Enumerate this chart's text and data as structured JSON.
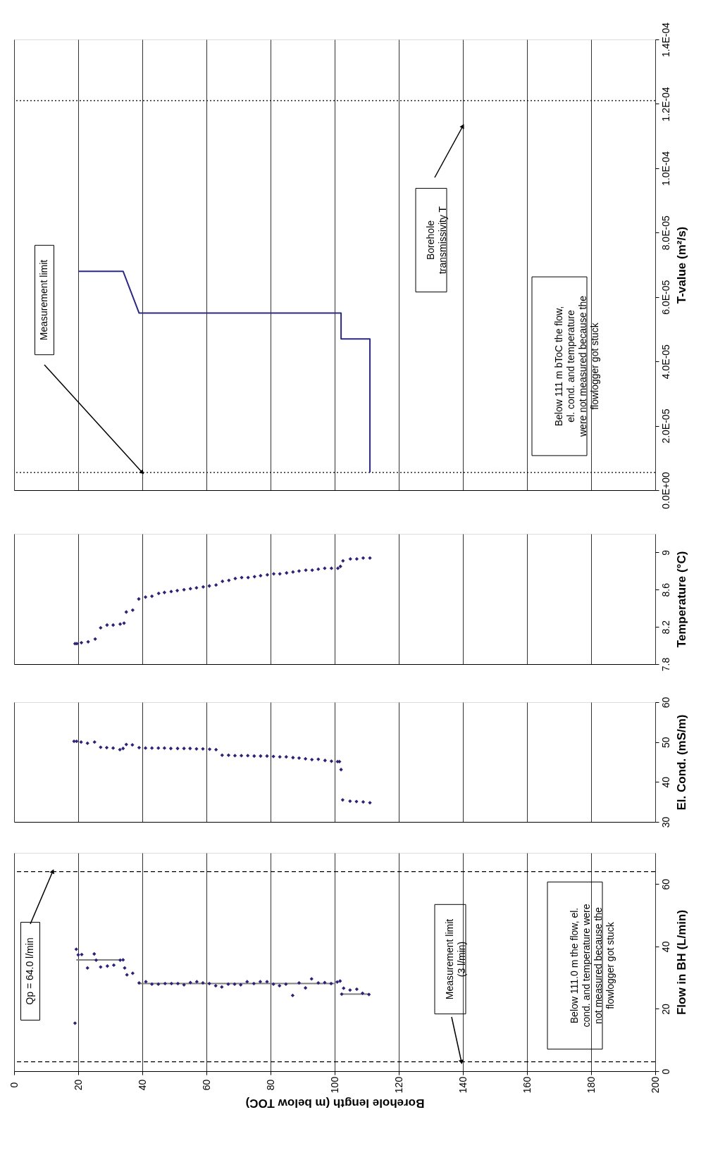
{
  "chart_data": [
    {
      "type": "line",
      "ylabel": "T-value (m²/s)",
      "xlim": [
        0,
        200
      ],
      "xticks": [
        0,
        20,
        40,
        60,
        80,
        100,
        120,
        140,
        160,
        180,
        200
      ],
      "ylim": [
        0,
        0.00014
      ],
      "yticks": [
        {
          "value": 0,
          "label": "0.0E+00"
        },
        {
          "value": 2e-05,
          "label": "2.0E-05"
        },
        {
          "value": 4e-05,
          "label": "4.0E-05"
        },
        {
          "value": 6e-05,
          "label": "6.0E-05"
        },
        {
          "value": 8e-05,
          "label": "8.0E-05"
        },
        {
          "value": 0.0001,
          "label": "1.0E-04"
        },
        {
          "value": 0.00012,
          "label": "1.2E-04"
        },
        {
          "value": 0.00014,
          "label": "1.4E-04"
        }
      ],
      "grid": "x",
      "tick_labels": "y",
      "legend": false,
      "series": [
        {
          "color": "#2b2a80",
          "x": [
            20,
            34,
            39,
            102,
            102,
            111,
            111
          ],
          "values": [
            6.8e-05,
            6.8e-05,
            5.5e-05,
            5.5e-05,
            4.7e-05,
            4.7e-05,
            5.5e-06
          ]
        }
      ],
      "ref_lines": [
        {
          "axis": "y",
          "value": 5.5e-06,
          "color": "#000000",
          "line_style": "dotted"
        },
        {
          "axis": "y",
          "value": 0.000121,
          "color": "#000000",
          "line_style": "dotted"
        }
      ],
      "annotations": [
        "Measurement limit",
        "Borehole\ntransmissivity T",
        "Below 111 m bToC the flow,\nel. cond. and temperature\nwere not measured because the\nflowlogger got stuck"
      ]
    },
    {
      "type": "scatter",
      "ylabel": "Temperature (°C)",
      "xlim": [
        0,
        200
      ],
      "xticks": [
        0,
        20,
        40,
        60,
        80,
        100,
        120,
        140,
        160,
        180,
        200
      ],
      "ylim": [
        7.8,
        9.2
      ],
      "yticks": [
        7.8,
        8.2,
        8.6,
        9
      ],
      "grid": "x",
      "tick_labels": "y",
      "legend": false,
      "marker": "diamond",
      "series": [
        {
          "color": "#2b2277",
          "x": [
            19.0,
            19.6,
            21.0,
            23.1,
            25.3,
            27.0,
            29.0,
            30.9,
            33.1,
            34.3,
            35.0,
            37.0,
            38.9,
            41.0,
            43.0,
            45.1,
            46.9,
            49.0,
            50.9,
            53.0,
            55.0,
            56.9,
            59.0,
            60.9,
            63.0,
            65.0,
            67.0,
            69.0,
            71.0,
            73.0,
            75.0,
            76.9,
            79.0,
            81.0,
            82.9,
            85.0,
            87.0,
            88.9,
            91.0,
            93.0,
            94.9,
            96.9,
            99.0,
            101.0,
            101.8,
            102.6,
            104.9,
            106.9,
            108.9,
            111.0
          ],
          "values": [
            8.02,
            8.02,
            8.03,
            8.04,
            8.07,
            8.19,
            8.22,
            8.22,
            8.23,
            8.24,
            8.36,
            8.38,
            8.5,
            8.52,
            8.53,
            8.56,
            8.57,
            8.58,
            8.59,
            8.6,
            8.61,
            8.62,
            8.63,
            8.64,
            8.65,
            8.69,
            8.7,
            8.72,
            8.73,
            8.73,
            8.74,
            8.75,
            8.76,
            8.77,
            8.77,
            8.78,
            8.79,
            8.8,
            8.81,
            8.81,
            8.82,
            8.83,
            8.83,
            8.83,
            8.85,
            8.91,
            8.93,
            8.93,
            8.94,
            8.94
          ]
        }
      ]
    },
    {
      "type": "scatter",
      "ylabel": "El. Cond. (mS/m)",
      "xlim": [
        0,
        200
      ],
      "xticks": [
        0,
        20,
        40,
        60,
        80,
        100,
        120,
        140,
        160,
        180,
        200
      ],
      "ylim": [
        30,
        60
      ],
      "yticks": [
        30,
        40,
        50,
        60
      ],
      "grid": "x",
      "tick_labels": "y",
      "legend": false,
      "marker": "diamond",
      "series": [
        {
          "color": "#2b2277",
          "x": [
            18.7,
            19.5,
            20.9,
            22.9,
            25.1,
            27.0,
            28.9,
            30.9,
            33.0,
            34.0,
            35.0,
            36.9,
            39.0,
            41.0,
            43.0,
            45.0,
            46.9,
            48.9,
            51.0,
            53.0,
            54.9,
            56.9,
            58.9,
            61.0,
            63.0,
            64.9,
            66.9,
            68.9,
            70.9,
            72.9,
            74.9,
            76.9,
            78.9,
            80.9,
            82.9,
            84.9,
            87.0,
            88.9,
            90.9,
            92.9,
            94.9,
            97.0,
            99.0,
            100.9,
            101.5,
            102.0,
            102.5,
            104.8,
            106.8,
            108.9,
            111.0
          ],
          "values": [
            50.2,
            50.2,
            50.0,
            49.7,
            50.0,
            48.7,
            48.6,
            48.5,
            48.1,
            48.4,
            49.4,
            49.3,
            48.6,
            48.5,
            48.5,
            48.5,
            48.5,
            48.4,
            48.4,
            48.4,
            48.4,
            48.3,
            48.3,
            48.2,
            48.1,
            46.7,
            46.7,
            46.6,
            46.6,
            46.6,
            46.5,
            46.5,
            46.5,
            46.4,
            46.3,
            46.3,
            46.1,
            46.0,
            45.8,
            45.6,
            45.7,
            45.4,
            45.2,
            45.1,
            45.1,
            43.1,
            35.5,
            35.2,
            35.1,
            35.0,
            34.8
          ]
        }
      ]
    },
    {
      "type": "scatter",
      "xlabel": "Borehole length (m below TOC)",
      "ylabel": "Flow in BH (L/min)",
      "xlim": [
        0,
        200
      ],
      "xticks": [
        0,
        20,
        40,
        60,
        80,
        100,
        120,
        140,
        160,
        180,
        200
      ],
      "ylim": [
        0,
        70
      ],
      "yticks": [
        0,
        20,
        40,
        60
      ],
      "grid": "x",
      "legend": false,
      "marker": "diamond",
      "series": [
        {
          "color": "#2b2277",
          "x": [
            19.0,
            19.4,
            20.0,
            21.1,
            22.9,
            25.0,
            25.6,
            27.0,
            29.1,
            31.1,
            33.1,
            34.0,
            34.5,
            35.2,
            37.0,
            39.0,
            41.1,
            43.0,
            45.0,
            47.1,
            49.1,
            51.1,
            53.0,
            55.0,
            57.0,
            58.9,
            60.9,
            62.9,
            64.8,
            66.8,
            68.8,
            70.7,
            72.7,
            74.8,
            76.8,
            78.9,
            80.9,
            82.8,
            84.8,
            86.9,
            88.9,
            90.9,
            92.8,
            94.9,
            96.9,
            98.9,
            100.8,
            101.7,
            102.2,
            102.8,
            104.8,
            106.9,
            108.7,
            110.7
          ],
          "values": [
            15.4,
            39.1,
            37.3,
            37.4,
            33.1,
            37.6,
            35.6,
            33.4,
            33.7,
            34.0,
            35.6,
            35.7,
            33.1,
            30.9,
            31.4,
            28.3,
            28.7,
            27.9,
            27.9,
            28.1,
            28.1,
            28.1,
            27.7,
            28.4,
            28.7,
            28.3,
            28.1,
            27.4,
            27.0,
            27.9,
            27.9,
            27.7,
            28.7,
            28.1,
            28.7,
            28.7,
            27.9,
            27.4,
            27.9,
            24.3,
            28.3,
            26.7,
            29.6,
            28.3,
            28.4,
            28.1,
            28.6,
            28.9,
            24.7,
            26.6,
            26.0,
            26.3,
            25.0,
            24.6
          ]
        },
        {
          "type": "line",
          "marker": "none",
          "color": "#808080",
          "x": [
            19.4,
            33.3
          ],
          "values": [
            35.7,
            35.7
          ]
        },
        {
          "type": "line",
          "marker": "none",
          "color": "#808080",
          "x": [
            38.7,
            99.9
          ],
          "values": [
            28.1,
            28.1
          ]
        },
        {
          "type": "line",
          "marker": "none",
          "color": "#808080",
          "x": [
            102.2,
            110.7
          ],
          "values": [
            24.7,
            24.7
          ]
        }
      ],
      "ref_lines": [
        {
          "axis": "y",
          "value": 3,
          "color": "#000000",
          "line_style": "dashed"
        },
        {
          "axis": "y",
          "value": 64,
          "color": "#000000",
          "line_style": "dashed"
        }
      ],
      "annotations": [
        "Qp = 64.0 l/min",
        "Measurement limit\n(3 l/min)",
        "Below 111.0 m the flow, el.\ncond. and temperature  were\nnot measured because the\nflowlogger got stuck"
      ]
    }
  ]
}
